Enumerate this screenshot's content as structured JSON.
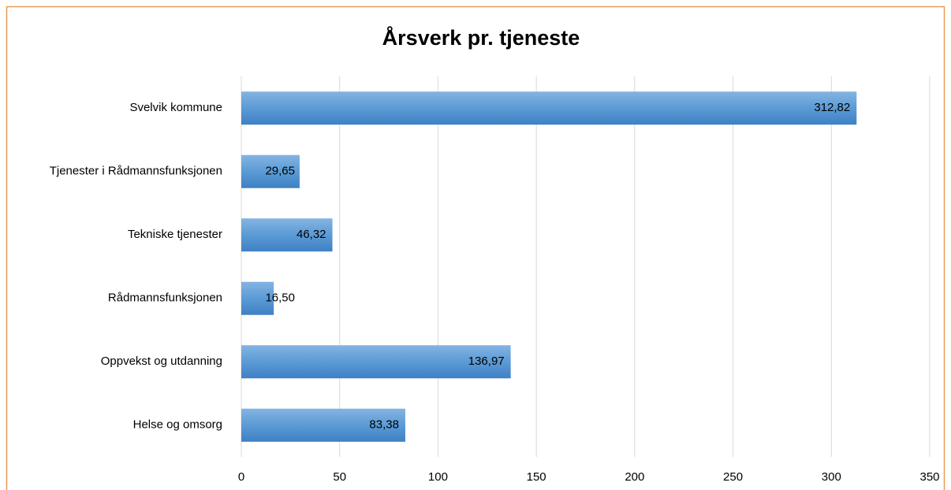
{
  "chart_data": {
    "type": "hbar",
    "title": "Årsverk pr. tjeneste",
    "categories": [
      "Svelvik kommune",
      "Tjenester i Rådmannsfunksjonen",
      "Tekniske tjenester",
      "Rådmannsfunksjonen",
      "Oppvekst og utdanning",
      "Helse og omsorg"
    ],
    "values": [
      312.82,
      29.65,
      46.32,
      16.5,
      136.97,
      83.38
    ],
    "value_labels": [
      "312,82",
      "29,65",
      "46,32",
      "16,50",
      "136,97",
      "83,38"
    ],
    "color": "#5b9bd5",
    "xlim": [
      0,
      350
    ],
    "xticks": [
      0,
      50,
      100,
      150,
      200,
      250,
      300,
      350
    ],
    "grid": true
  }
}
